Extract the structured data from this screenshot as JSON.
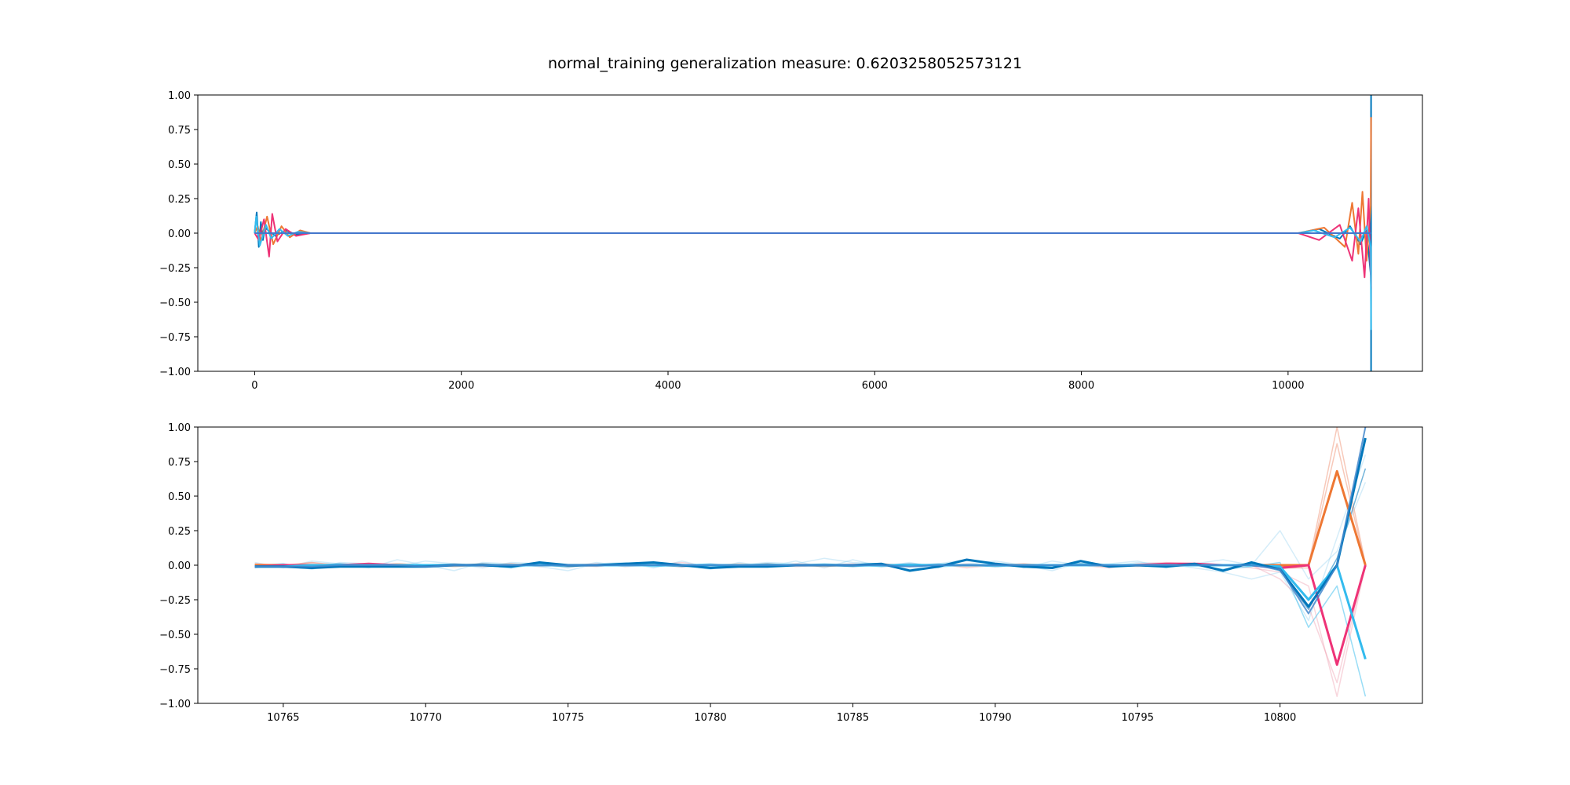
{
  "title": "normal_training generalization measure: 0.6203258052573121",
  "colors": {
    "orange": "#ee7733",
    "red": "#ee3377",
    "blue": "#0077bb",
    "cyan": "#33bbee",
    "lightblue": "#88ccee",
    "pink": "#ee99aa",
    "salmon": "#ee8866"
  },
  "chart_data": [
    {
      "type": "line",
      "title": "",
      "xlabel": "",
      "ylabel": "",
      "xlim": [
        -550,
        11300
      ],
      "ylim": [
        -1.0,
        1.0
      ],
      "x_ticks": [
        0,
        2000,
        4000,
        6000,
        8000,
        10000
      ],
      "x_tick_labels": [
        "0",
        "2000",
        "4000",
        "6000",
        "8000",
        "10000"
      ],
      "y_ticks": [
        -1.0,
        -0.75,
        -0.5,
        -0.25,
        0.0,
        0.25,
        0.5,
        0.75,
        1.0
      ],
      "y_tick_labels": [
        "−1.00",
        "−0.75",
        "−0.50",
        "−0.25",
        "0.00",
        "0.25",
        "0.50",
        "0.75",
        "1.00"
      ],
      "grid": false,
      "series": [
        {
          "color": "#0077bb",
          "x": [
            0,
            20,
            40,
            60,
            80,
            100,
            200,
            300,
            400,
            540,
            10100,
            10300,
            10500,
            10600,
            10700,
            10760,
            10800,
            10803,
            10803
          ],
          "y": [
            0.0,
            0.15,
            -0.1,
            0.08,
            -0.05,
            0.04,
            -0.02,
            0.02,
            -0.01,
            0.0,
            0.0,
            0.03,
            -0.04,
            0.05,
            -0.08,
            0.02,
            -0.3,
            1.0,
            -1.0
          ]
        },
        {
          "color": "#ee7733",
          "x": [
            0,
            30,
            60,
            120,
            180,
            260,
            340,
            440,
            540,
            10100,
            10350,
            10550,
            10620,
            10680,
            10720,
            10760,
            10800,
            10803
          ],
          "y": [
            0.0,
            0.05,
            -0.06,
            0.12,
            -0.08,
            0.05,
            -0.03,
            0.02,
            0.0,
            0.0,
            0.04,
            -0.1,
            0.22,
            -0.15,
            0.3,
            -0.2,
            0.2,
            0.84
          ]
        },
        {
          "color": "#ee3377",
          "x": [
            0,
            40,
            90,
            140,
            170,
            220,
            300,
            400,
            540,
            10100,
            10300,
            10500,
            10620,
            10680,
            10740,
            10780,
            10803
          ],
          "y": [
            0.0,
            -0.05,
            0.1,
            -0.17,
            0.14,
            -0.06,
            0.03,
            -0.02,
            0.0,
            0.0,
            -0.05,
            0.06,
            -0.2,
            0.18,
            -0.32,
            0.25,
            -0.4
          ]
        },
        {
          "color": "#33bbee",
          "x": [
            0,
            15,
            50,
            110,
            160,
            240,
            320,
            420,
            540,
            10100,
            10250,
            10450,
            10600,
            10700,
            10760,
            10800,
            10803
          ],
          "y": [
            0.0,
            0.12,
            -0.09,
            0.06,
            -0.04,
            0.03,
            -0.02,
            0.01,
            0.0,
            0.0,
            0.02,
            -0.03,
            0.04,
            -0.06,
            0.05,
            -0.1,
            -0.7
          ]
        },
        {
          "color": "#4477cc",
          "x": [
            0,
            540,
            10100,
            10803
          ],
          "y": [
            0.0,
            0.0,
            0.0,
            0.0
          ]
        }
      ]
    },
    {
      "type": "line",
      "title": "",
      "xlabel": "",
      "ylabel": "",
      "xlim": [
        10762,
        10805
      ],
      "ylim": [
        -1.0,
        1.0
      ],
      "x_ticks": [
        10765,
        10770,
        10775,
        10780,
        10785,
        10790,
        10795,
        10800
      ],
      "x_tick_labels": [
        "10765",
        "10770",
        "10775",
        "10780",
        "10785",
        "10790",
        "10795",
        "10800"
      ],
      "y_ticks": [
        -1.0,
        -0.75,
        -0.5,
        -0.25,
        0.0,
        0.25,
        0.5,
        0.75,
        1.0
      ],
      "y_tick_labels": [
        "−1.00",
        "−0.75",
        "−0.50",
        "−0.25",
        "0.00",
        "0.25",
        "0.50",
        "0.75",
        "1.00"
      ],
      "grid": false,
      "x": [
        10764,
        10765,
        10766,
        10767,
        10768,
        10769,
        10770,
        10771,
        10772,
        10773,
        10774,
        10775,
        10776,
        10777,
        10778,
        10779,
        10780,
        10781,
        10782,
        10783,
        10784,
        10785,
        10786,
        10787,
        10788,
        10789,
        10790,
        10791,
        10792,
        10793,
        10794,
        10795,
        10796,
        10797,
        10798,
        10799,
        10800,
        10801,
        10802,
        10803
      ],
      "series": [
        {
          "color": "#88ccee",
          "opacity": 0.35,
          "width": 1.5,
          "y": [
            0.02,
            -0.02,
            0.03,
            0.01,
            -0.02,
            0.04,
            0.0,
            -0.04,
            0.02,
            0.01,
            -0.01,
            -0.04,
            0.01,
            0.02,
            -0.02,
            0.03,
            -0.02,
            0.0,
            0.02,
            0.01,
            0.05,
            0.02,
            0.01,
            -0.03,
            0.01,
            0.04,
            0.02,
            -0.02,
            0.03,
            0.0,
            0.01,
            0.03,
            -0.02,
            0.01,
            0.04,
            0.0,
            0.25,
            -0.1,
            0.1,
            0.6
          ]
        },
        {
          "color": "#88ccee",
          "opacity": 0.35,
          "width": 1.5,
          "y": [
            -0.02,
            0.01,
            -0.03,
            0.02,
            0.01,
            -0.01,
            0.03,
            0.01,
            -0.02,
            0.02,
            0.01,
            -0.02,
            0.02,
            -0.01,
            0.01,
            0.0,
            -0.03,
            0.02,
            -0.01,
            0.03,
            -0.02,
            0.04,
            -0.01,
            0.02,
            -0.02,
            0.01,
            0.03,
            0.0,
            -0.04,
            0.02,
            -0.01,
            0.02,
            0.01,
            -0.02,
            -0.05,
            -0.1,
            -0.05,
            -0.4,
            0.2,
            0.8
          ]
        },
        {
          "color": "#ee99aa",
          "opacity": 0.4,
          "width": 1.5,
          "y": [
            0.0,
            -0.01,
            0.02,
            -0.01,
            0.01,
            0.0,
            -0.01,
            0.01,
            0.0,
            0.01,
            -0.01,
            0.0,
            0.01,
            -0.01,
            0.0,
            0.02,
            -0.01,
            0.0,
            0.01,
            -0.01,
            0.0,
            0.01,
            -0.01,
            0.0,
            0.01,
            -0.02,
            0.0,
            0.01,
            -0.01,
            0.0,
            -0.02,
            0.01,
            0.02,
            0.01,
            0.0,
            -0.02,
            -0.05,
            -0.15,
            -0.95,
            0.0
          ]
        },
        {
          "color": "#ee99aa",
          "opacity": 0.4,
          "width": 1.5,
          "y": [
            0.01,
            0.0,
            -0.01,
            0.0,
            0.01,
            -0.01,
            0.0,
            0.01,
            -0.01,
            0.0,
            0.01,
            0.0,
            -0.01,
            0.01,
            0.0,
            -0.01,
            0.01,
            0.0,
            -0.01,
            0.01,
            0.0,
            0.0,
            0.01,
            -0.01,
            0.0,
            0.01,
            0.0,
            -0.01,
            0.0,
            0.01,
            0.0,
            -0.01,
            0.0,
            0.01,
            0.0,
            0.0,
            -0.1,
            -0.3,
            -0.85,
            0.01
          ]
        },
        {
          "color": "#ee8866",
          "opacity": 0.45,
          "width": 1.5,
          "y": [
            0.0,
            0.0,
            0.01,
            -0.01,
            0.0,
            0.01,
            0.0,
            -0.01,
            0.0,
            0.01,
            0.0,
            -0.01,
            0.0,
            0.01,
            0.0,
            -0.01,
            0.0,
            0.0,
            0.01,
            0.0,
            -0.01,
            0.0,
            0.01,
            0.0,
            0.0,
            -0.01,
            0.0,
            0.01,
            0.0,
            0.0,
            -0.01,
            0.0,
            0.01,
            0.0,
            0.0,
            0.0,
            0.0,
            0.0,
            1.0,
            0.01
          ]
        },
        {
          "color": "#ee8866",
          "opacity": 0.45,
          "width": 1.5,
          "y": [
            0.01,
            0.0,
            0.02,
            0.0,
            0.0,
            0.01,
            0.0,
            0.0,
            0.01,
            0.0,
            0.0,
            0.0,
            0.0,
            0.0,
            0.01,
            0.0,
            0.0,
            0.01,
            0.0,
            0.0,
            0.0,
            0.0,
            0.0,
            0.0,
            0.0,
            0.0,
            0.0,
            0.0,
            0.0,
            0.0,
            0.0,
            0.0,
            0.0,
            0.0,
            0.0,
            0.0,
            -0.02,
            -0.02,
            0.88,
            0.0
          ]
        },
        {
          "color": "#33bbee",
          "opacity": 0.5,
          "width": 1.5,
          "y": [
            0.0,
            0.01,
            -0.02,
            0.0,
            0.01,
            -0.01,
            0.0,
            0.01,
            0.0,
            -0.02,
            0.01,
            0.0,
            0.0,
            0.01,
            -0.01,
            0.0,
            0.01,
            -0.01,
            0.0,
            0.0,
            0.01,
            0.0,
            -0.01,
            0.0,
            0.01,
            0.0,
            0.0,
            -0.01,
            0.0,
            0.01,
            0.0,
            0.0,
            0.01,
            0.0,
            -0.03,
            -0.01,
            0.02,
            -0.45,
            -0.15,
            -0.95
          ]
        },
        {
          "color": "#0077bb",
          "opacity": 0.55,
          "width": 1.5,
          "y": [
            0.0,
            -0.01,
            0.0,
            0.01,
            0.0,
            0.0,
            -0.01,
            0.0,
            0.01,
            0.0,
            0.0,
            -0.01,
            0.0,
            0.01,
            0.0,
            -0.01,
            0.0,
            0.0,
            0.01,
            0.0,
            0.0,
            -0.01,
            0.0,
            0.01,
            0.0,
            0.0,
            -0.01,
            0.0,
            0.0,
            0.01,
            0.0,
            0.0,
            -0.01,
            0.0,
            0.0,
            0.01,
            -0.04,
            -0.32,
            0.05,
            0.7
          ]
        },
        {
          "color": "#ee7733",
          "opacity": 1.0,
          "width": 3,
          "y": [
            0.0,
            0.0,
            0.0,
            0.0,
            0.0,
            0.0,
            0.0,
            0.0,
            0.0,
            0.0,
            0.0,
            0.0,
            0.0,
            0.0,
            0.0,
            0.0,
            0.0,
            0.0,
            0.0,
            0.0,
            0.0,
            0.0,
            0.0,
            0.0,
            0.0,
            0.0,
            0.0,
            0.0,
            0.0,
            0.0,
            0.0,
            0.0,
            0.0,
            0.0,
            0.0,
            0.0,
            0.0,
            0.0,
            0.68,
            0.0
          ]
        },
        {
          "color": "#ee3377",
          "opacity": 1.0,
          "width": 3,
          "y": [
            -0.01,
            0.0,
            0.0,
            0.0,
            0.01,
            0.0,
            0.0,
            0.0,
            0.0,
            0.0,
            0.0,
            0.0,
            0.0,
            0.0,
            0.0,
            0.0,
            0.0,
            0.0,
            0.0,
            0.0,
            0.0,
            0.0,
            0.0,
            0.0,
            0.0,
            0.0,
            0.0,
            0.0,
            0.0,
            0.0,
            0.0,
            0.0,
            0.01,
            0.01,
            0.0,
            0.0,
            -0.02,
            0.0,
            -0.72,
            0.0
          ]
        },
        {
          "color": "#33bbee",
          "opacity": 1.0,
          "width": 3,
          "y": [
            -0.01,
            -0.01,
            0.0,
            0.0,
            0.0,
            0.0,
            0.0,
            0.0,
            0.0,
            0.0,
            0.0,
            0.0,
            0.0,
            0.0,
            0.0,
            0.0,
            0.0,
            0.0,
            0.0,
            0.0,
            0.0,
            0.0,
            0.0,
            0.0,
            0.0,
            0.0,
            0.0,
            0.0,
            0.0,
            0.0,
            0.0,
            0.0,
            0.0,
            0.0,
            0.0,
            0.0,
            -0.01,
            -0.25,
            0.0,
            -0.68
          ]
        },
        {
          "color": "#0077bb",
          "opacity": 1.0,
          "width": 3,
          "y": [
            -0.01,
            -0.01,
            -0.02,
            -0.01,
            -0.01,
            -0.01,
            -0.01,
            0.0,
            0.0,
            -0.01,
            0.02,
            0.0,
            0.0,
            0.01,
            0.02,
            0.0,
            -0.02,
            -0.01,
            -0.01,
            0.0,
            0.0,
            0.0,
            0.01,
            -0.04,
            -0.01,
            0.04,
            0.01,
            -0.01,
            -0.02,
            0.03,
            -0.01,
            0.0,
            -0.01,
            0.01,
            -0.04,
            0.02,
            -0.03,
            -0.3,
            0.0,
            0.92
          ]
        },
        {
          "color": "#4488cc",
          "opacity": 0.85,
          "width": 2,
          "y": [
            -0.01,
            -0.01,
            -0.01,
            0.0,
            0.0,
            0.0,
            -0.01,
            0.0,
            0.0,
            0.0,
            0.0,
            0.0,
            0.0,
            0.0,
            0.0,
            0.0,
            0.0,
            0.0,
            0.0,
            0.0,
            0.0,
            0.0,
            0.0,
            -0.01,
            0.0,
            0.0,
            0.0,
            0.0,
            0.0,
            0.0,
            0.0,
            0.0,
            0.0,
            0.0,
            0.0,
            0.0,
            -0.03,
            -0.35,
            0.0,
            1.0
          ]
        }
      ]
    }
  ]
}
